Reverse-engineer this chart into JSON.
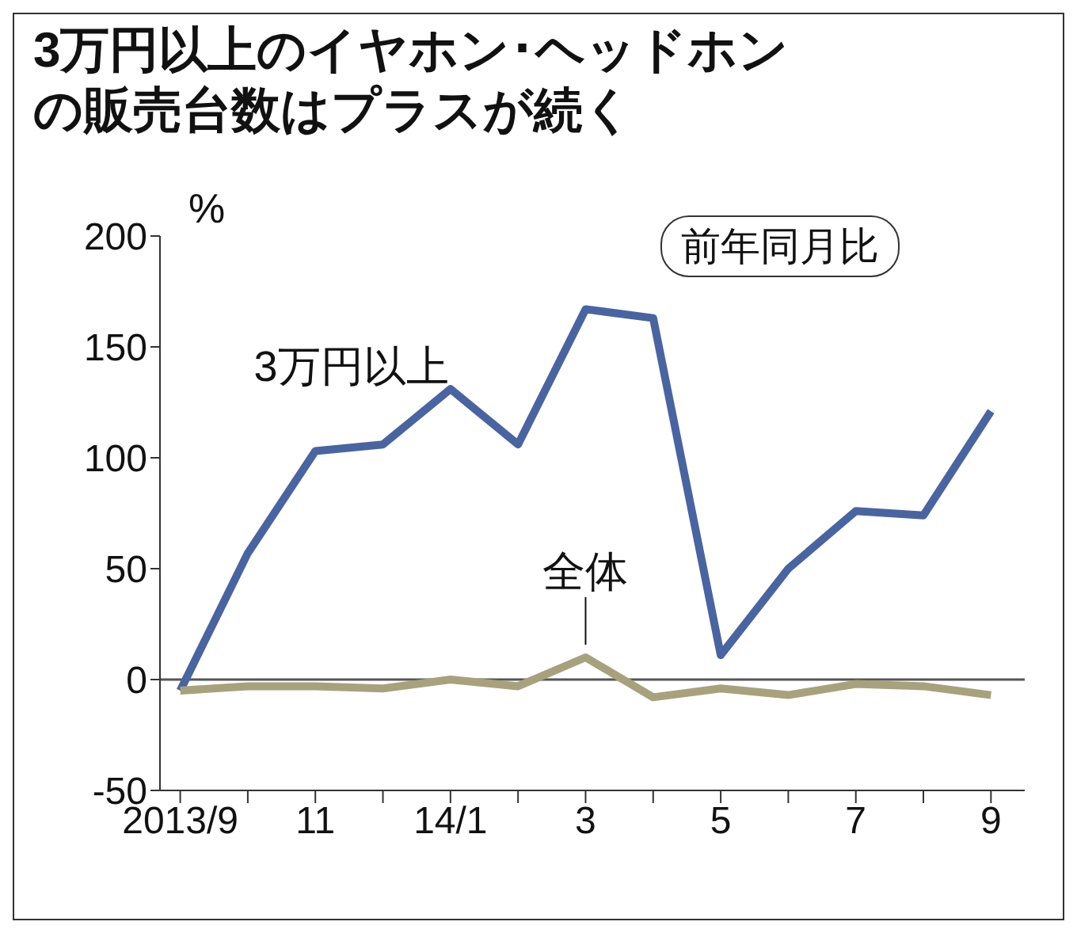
{
  "chart_data": {
    "type": "line",
    "title": "3万円以上のイヤホン･ヘッドホンの販売台数はプラスが続く",
    "ylabel": "%",
    "annotations": [
      "前年同月比"
    ],
    "categories": [
      "2013/9",
      null,
      "11",
      null,
      "14/1",
      null,
      "3",
      null,
      "5",
      null,
      "7",
      null,
      "9"
    ],
    "series": [
      {
        "name": "3万円以上",
        "color": "#4a64a0",
        "values": [
          -5,
          57,
          103,
          106,
          131,
          106,
          167,
          163,
          11,
          50,
          76,
          74,
          121
        ]
      },
      {
        "name": "全体",
        "color": "#a8a17e",
        "values": [
          -5,
          -3,
          -3,
          -4,
          0,
          -3,
          10,
          -8,
          -4,
          -7,
          -2,
          -3,
          -7
        ]
      }
    ],
    "ylim": [
      -50,
      200
    ],
    "yticks": [
      -50,
      0,
      50,
      100,
      150,
      200
    ],
    "ref_lines": [
      {
        "axis": "y",
        "value": 0,
        "color": "#555555"
      }
    ],
    "grid": false,
    "legend": false,
    "marker": "none",
    "line_style": "solid"
  }
}
